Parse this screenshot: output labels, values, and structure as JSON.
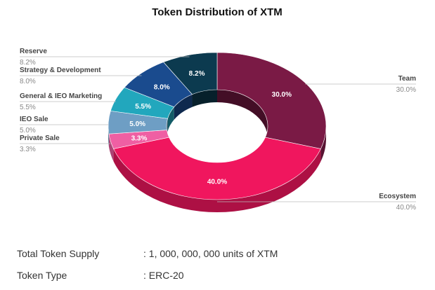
{
  "chart_data": {
    "type": "pie",
    "title": "Token Distribution of XTM",
    "slices": [
      {
        "label": "Team",
        "value": 30.0,
        "value_label": "30.0%",
        "color": "#7a1a45"
      },
      {
        "label": "Ecosystem",
        "value": 40.0,
        "value_label": "40.0%",
        "color": "#f0165e"
      },
      {
        "label": "Private Sale",
        "value": 3.3,
        "value_label": "3.3%",
        "color": "#ef5fa3"
      },
      {
        "label": "IEO Sale",
        "value": 5.0,
        "value_label": "5.0%",
        "color": "#6e9ec4"
      },
      {
        "label": "General & IEO Marketing",
        "value": 5.5,
        "value_label": "5.5%",
        "color": "#22a7bd"
      },
      {
        "label": "Strategy & Development",
        "value": 8.0,
        "value_label": "8.0%",
        "color": "#1a4b8e"
      },
      {
        "label": "Reserve",
        "value": 8.2,
        "value_label": "8.2%",
        "color": "#0c3a4f"
      }
    ]
  },
  "info": {
    "supply_key": "Total Token Supply",
    "supply_value": ": 1, 000, 000, 000 units of XTM",
    "type_key": "Token Type",
    "type_value": ": ERC-20"
  }
}
